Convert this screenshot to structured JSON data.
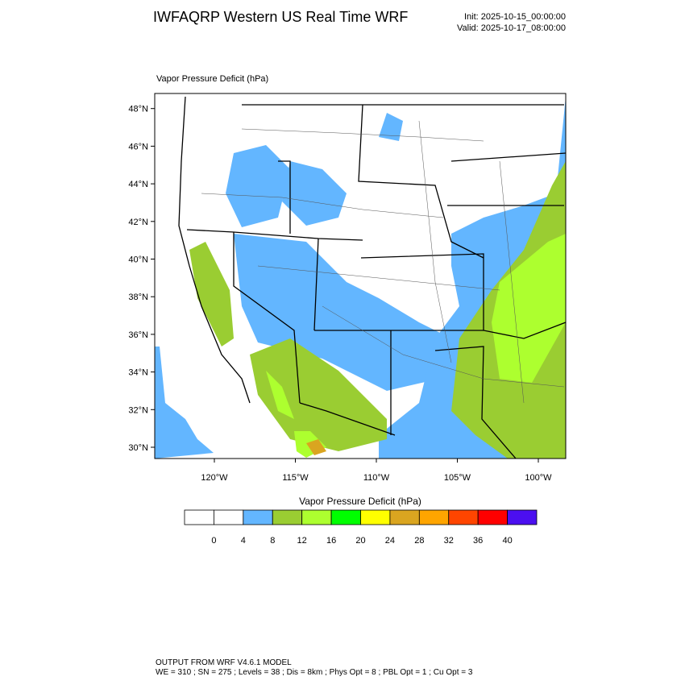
{
  "header": {
    "title": "IWFAQRP Western US Real Time WRF",
    "init": "Init: 2025-10-15_00:00:00",
    "valid": "Valid: 2025-10-17_08:00:00"
  },
  "map": {
    "label": "Vapor Pressure Deficit   (hPa)",
    "lat_labels": [
      "30°N",
      "32°N",
      "34°N",
      "36°N",
      "38°N",
      "40°N",
      "42°N",
      "44°N",
      "46°N",
      "48°N"
    ],
    "lon_labels": [
      "120°W",
      "115°W",
      "110°W",
      "105°W",
      "100°W"
    ]
  },
  "colorbar": {
    "title": "Vapor Pressure Deficit  (hPa)",
    "levels": [
      0,
      4,
      8,
      12,
      16,
      20,
      24,
      28,
      32,
      36,
      40
    ],
    "colors": [
      "#ffffff",
      "#ffffff",
      "#63b6ff",
      "#9acd32",
      "#adff2f",
      "#00ff00",
      "#ffff00",
      "#daa520",
      "#ffa500",
      "#ff4500",
      "#ff0000",
      "#4b0ff0"
    ]
  },
  "footer": {
    "line1": "OUTPUT FROM WRF V4.6.1 MODEL",
    "line2": "WE = 310 ; SN = 275 ; Levels = 38 ; Dis = 8km ; Phys Opt = 8 ; PBL Opt = 1 ; Cu Opt = 3"
  }
}
